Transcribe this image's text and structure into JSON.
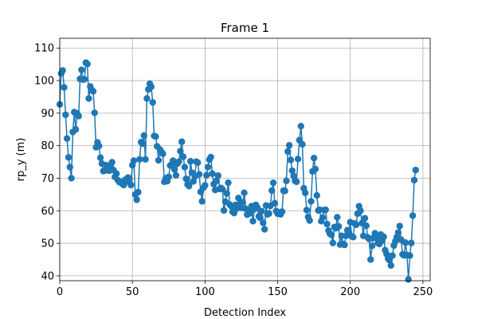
{
  "chart_data": {
    "type": "line",
    "title": "Frame 1",
    "xlabel": "Detection Index",
    "ylabel": "rp_y (m)",
    "xlim": [
      0,
      255
    ],
    "ylim": [
      38.5,
      113
    ],
    "grid": true,
    "x_ticks": [
      0,
      50,
      100,
      150,
      200,
      250
    ],
    "y_ticks": [
      40,
      50,
      60,
      70,
      80,
      90,
      100,
      110
    ],
    "marker": "circle",
    "colors": {
      "series": "#1f77b4"
    },
    "series": [
      {
        "name": "",
        "y": [
          92.7,
          102.2,
          103.1,
          97.9,
          89.5,
          82.2,
          76.4,
          73.4,
          70.0,
          84.2,
          90.3,
          85.0,
          89.9,
          89.1,
          100.5,
          103.3,
          100.3,
          100.4,
          105.5,
          105.1,
          94.5,
          98.2,
          97.1,
          96.7,
          90.1,
          79.5,
          81.0,
          79.9,
          76.3,
          74.5,
          72.2,
          72.3,
          74.0,
          73.5,
          72.3,
          73.8,
          74.9,
          72.5,
          70.4,
          71.4,
          69.4,
          68.8,
          68.8,
          68.3,
          67.9,
          69.5,
          69.0,
          70.2,
          69.6,
          67.9,
          74.0,
          75.4,
          65.0,
          63.4,
          65.7,
          75.8,
          81.1,
          80.6,
          83.1,
          75.8,
          94.5,
          97.3,
          99.0,
          98.1,
          93.3,
          83.0,
          82.8,
          79.8,
          75.5,
          78.8,
          78.1,
          77.5,
          68.9,
          70.0,
          69.1,
          70.4,
          73.9,
          74.2,
          75.4,
          72.7,
          70.9,
          74.5,
          75.1,
          78.3,
          81.2,
          76.6,
          73.4,
          69.8,
          68.1,
          67.6,
          75.2,
          71.7,
          69.0,
          70.5,
          75.1,
          74.8,
          71.2,
          65.8,
          62.9,
          67.1,
          67.8,
          70.9,
          73.4,
          75.7,
          76.5,
          71.4,
          68.2,
          66.4,
          69.2,
          70.8,
          66.7,
          67.0,
          66.6,
          60.1,
          62.8,
          65.3,
          68.6,
          61.9,
          61.4,
          59.7,
          59.3,
          61.8,
          60.7,
          63.9,
          62.2,
          60.9,
          62.6,
          65.5,
          60.6,
          58.8,
          59.8,
          59.2,
          61.4,
          56.8,
          60.5,
          61.8,
          61.0,
          58.3,
          57.8,
          59.9,
          56.3,
          54.3,
          61.6,
          58.9,
          59.1,
          61.5,
          66.2,
          68.6,
          62.3,
          59.9,
          59.1,
          59.5,
          58.9,
          59.7,
          66.2,
          66.1,
          69.2,
          78.2,
          80.1,
          75.6,
          72.3,
          70.7,
          69.2,
          68.9,
          75.9,
          81.7,
          86.0,
          80.4,
          66.9,
          65.5,
          60.2,
          58.1,
          57.0,
          62.9,
          72.1,
          76.2,
          72.8,
          64.7,
          60.1,
          60.3,
          56.8,
          57.9,
          60.2,
          60.3,
          55.9,
          53.9,
          52.9,
          52.6,
          50.1,
          55.0,
          54.6,
          58.0,
          55.2,
          49.6,
          52.3,
          49.8,
          49.5,
          52.3,
          54.0,
          53.4,
          56.5,
          52.1,
          51.9,
          56.1,
          55.7,
          59.1,
          61.4,
          60.0,
          56.2,
          52.3,
          57.7,
          55.4,
          51.8,
          51.3,
          45.0,
          49.2,
          51.7,
          53.1,
          51.6,
          50.1,
          49.8,
          52.7,
          50.8,
          52.0,
          47.9,
          46.7,
          45.3,
          44.8,
          43.2,
          46.2,
          49.3,
          50.6,
          51.9,
          53.3,
          55.3,
          51.1,
          46.6,
          46.3,
          50.2,
          46.4,
          38.9,
          46.2,
          50.1,
          58.5,
          69.4,
          72.5
        ]
      }
    ]
  }
}
